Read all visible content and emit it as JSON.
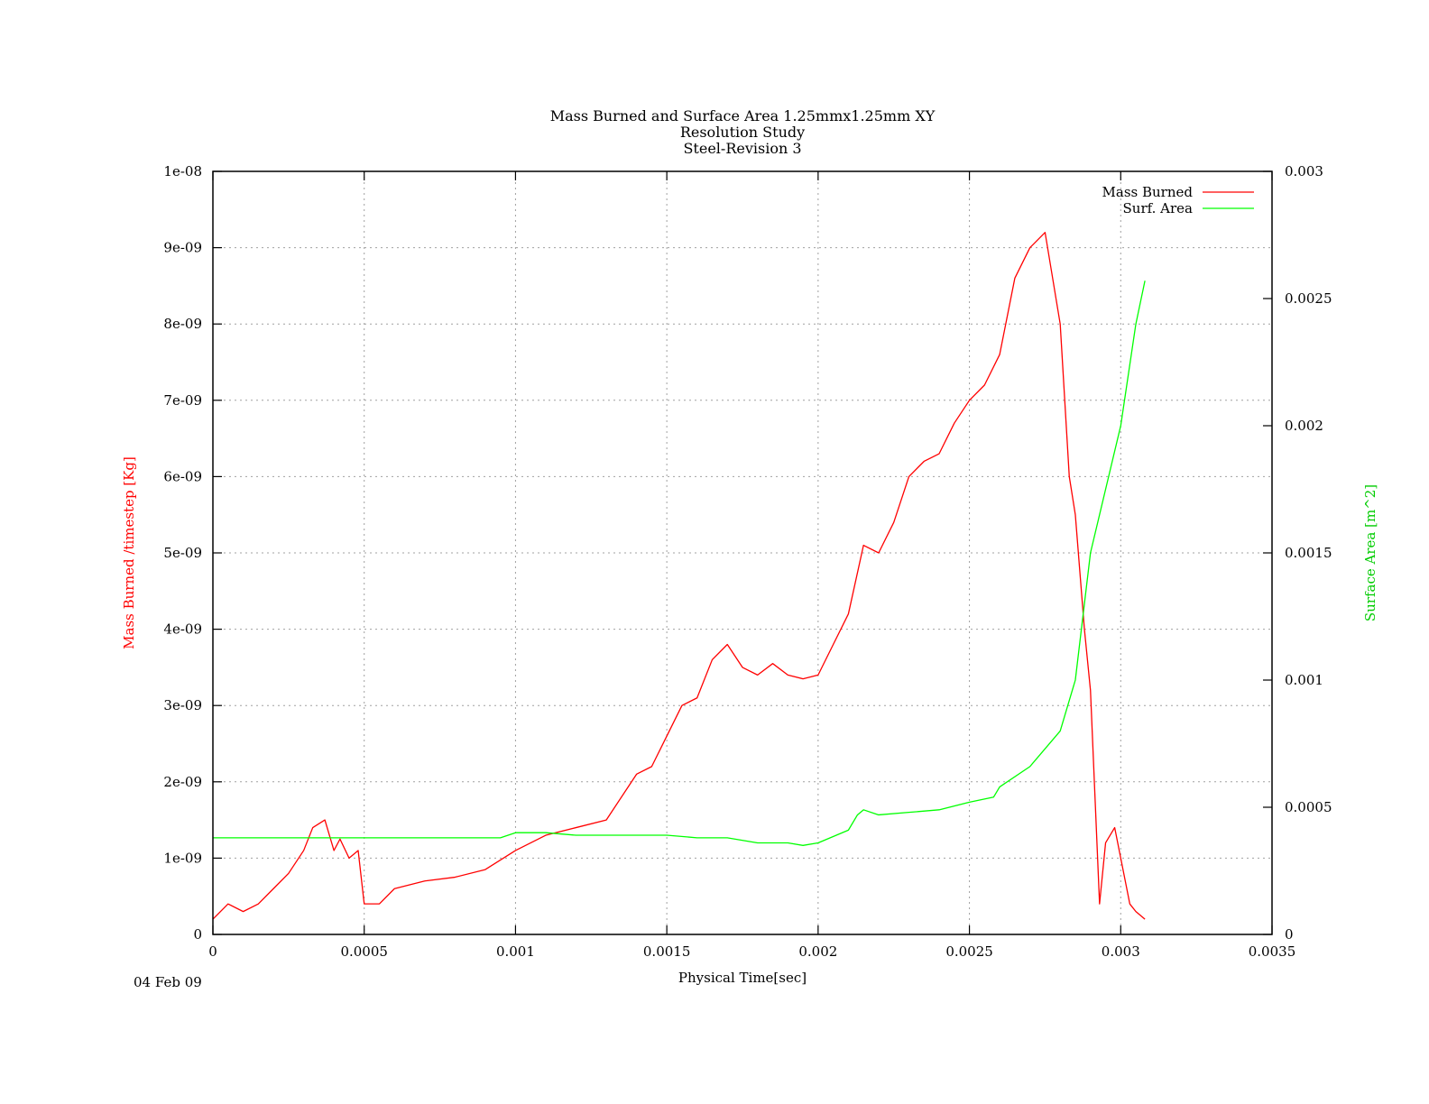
{
  "chart_data": {
    "type": "line",
    "title_lines": [
      "Mass Burned and Surface Area 1.25mmx1.25mm XY",
      "Resolution Study",
      "Steel-Revision 3"
    ],
    "xlabel": "Physical Time[sec]",
    "ylabel_left": "Mass Burned /timestep  [Kg]",
    "ylabel_right": "Surface Area [m^2]",
    "xlim": [
      0,
      0.0035
    ],
    "ylim_left": [
      0,
      1e-08
    ],
    "ylim_right": [
      0,
      0.003
    ],
    "x_ticks": [
      "0",
      "0.0005",
      "0.001",
      "0.0015",
      "0.002",
      "0.0025",
      "0.003",
      "0.0035"
    ],
    "x_tick_values": [
      0,
      0.0005,
      0.001,
      0.0015,
      0.002,
      0.0025,
      0.003,
      0.0035
    ],
    "y_left_ticks": [
      "0",
      "1e-09",
      "2e-09",
      "3e-09",
      "4e-09",
      "5e-09",
      "6e-09",
      "7e-09",
      "8e-09",
      "9e-09",
      "1e-08"
    ],
    "y_left_tick_values": [
      0,
      1e-09,
      2e-09,
      3e-09,
      4e-09,
      5e-09,
      6e-09,
      7e-09,
      8e-09,
      9e-09,
      1e-08
    ],
    "y_right_ticks": [
      "0",
      "0.0005",
      "0.001",
      "0.0015",
      "0.002",
      "0.0025",
      "0.003"
    ],
    "y_right_tick_values": [
      0,
      0.0005,
      0.001,
      0.0015,
      0.002,
      0.0025,
      0.003
    ],
    "grid": true,
    "legend_position": "top-right",
    "series": [
      {
        "name": "Mass Burned",
        "axis": "left",
        "color": "#ff0000",
        "x": [
          0.0,
          5e-05,
          0.0001,
          0.00015,
          0.0002,
          0.00025,
          0.0003,
          0.00033,
          0.00037,
          0.0004,
          0.00042,
          0.00045,
          0.00048,
          0.0005,
          0.00055,
          0.0006,
          0.0007,
          0.0008,
          0.0009,
          0.001,
          0.0011,
          0.0012,
          0.0013,
          0.0014,
          0.00145,
          0.0015,
          0.00155,
          0.0016,
          0.00165,
          0.0017,
          0.00175,
          0.0018,
          0.00185,
          0.0019,
          0.00195,
          0.002,
          0.00205,
          0.0021,
          0.00215,
          0.0022,
          0.00225,
          0.0023,
          0.00235,
          0.0024,
          0.00245,
          0.0025,
          0.00255,
          0.0026,
          0.00265,
          0.0027,
          0.00275,
          0.0028,
          0.00283,
          0.00285,
          0.00288,
          0.0029,
          0.00293,
          0.00295,
          0.00298,
          0.003,
          0.00303,
          0.00305,
          0.00308
        ],
        "y": [
          2e-10,
          4e-10,
          3e-10,
          4e-10,
          6e-10,
          8e-10,
          1.1e-09,
          1.4e-09,
          1.5e-09,
          1.1e-09,
          1.25e-09,
          1e-09,
          1.1e-09,
          4e-10,
          4e-10,
          6e-10,
          7e-10,
          7.5e-10,
          8.5e-10,
          1.1e-09,
          1.3e-09,
          1.4e-09,
          1.5e-09,
          2.1e-09,
          2.2e-09,
          2.6e-09,
          3e-09,
          3.1e-09,
          3.6e-09,
          3.8e-09,
          3.5e-09,
          3.4e-09,
          3.55e-09,
          3.4e-09,
          3.35e-09,
          3.4e-09,
          3.8e-09,
          4.2e-09,
          5.1e-09,
          5e-09,
          5.4e-09,
          6e-09,
          6.2e-09,
          6.3e-09,
          6.7e-09,
          7e-09,
          7.2e-09,
          7.6e-09,
          8.6e-09,
          9e-09,
          9.2e-09,
          8e-09,
          6e-09,
          5.5e-09,
          4e-09,
          3.2e-09,
          4e-10,
          1.2e-09,
          1.4e-09,
          1e-09,
          4e-10,
          3e-10,
          2e-10
        ]
      },
      {
        "name": "Surf. Area",
        "axis": "right",
        "color": "#00ff00",
        "x": [
          0.0,
          0.00095,
          0.001,
          0.0011,
          0.0012,
          0.0013,
          0.0014,
          0.0015,
          0.0016,
          0.0017,
          0.0018,
          0.0019,
          0.00195,
          0.002,
          0.0021,
          0.00213,
          0.00215,
          0.0022,
          0.0023,
          0.0024,
          0.0025,
          0.00258,
          0.0026,
          0.0027,
          0.0028,
          0.00285,
          0.0029,
          0.003,
          0.00305,
          0.00308
        ],
        "y": [
          0.00038,
          0.00038,
          0.0004,
          0.0004,
          0.00039,
          0.00039,
          0.00039,
          0.00039,
          0.00038,
          0.00038,
          0.00036,
          0.00036,
          0.00035,
          0.00036,
          0.00041,
          0.00047,
          0.00049,
          0.00047,
          0.00048,
          0.00049,
          0.00052,
          0.00054,
          0.00058,
          0.00066,
          0.0008,
          0.001,
          0.0015,
          0.002,
          0.0024,
          0.00257
        ]
      }
    ]
  },
  "footer": {
    "date": "04 Feb 09"
  }
}
